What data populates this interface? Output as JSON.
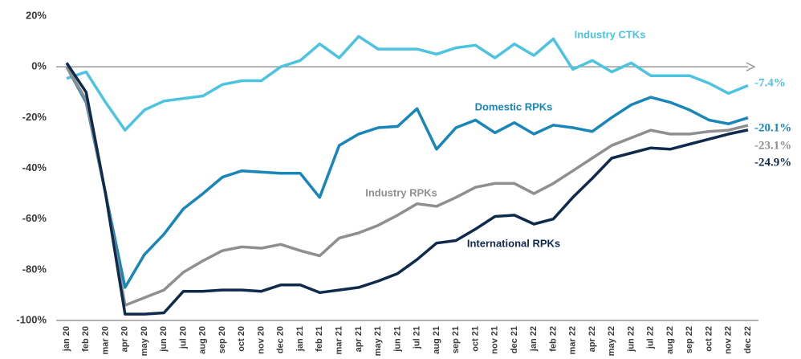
{
  "chart_data": {
    "type": "line",
    "categories": [
      "jan 20",
      "feb 20",
      "mar 20",
      "apr 20",
      "may 20",
      "jun 20",
      "jul 20",
      "aug 20",
      "sep 20",
      "oct 20",
      "nov 20",
      "dec 20",
      "jan 21",
      "feb 21",
      "mar 21",
      "apr 21",
      "may 21",
      "jun 21",
      "jul 21",
      "aug 21",
      "sep 21",
      "oct 21",
      "nov 21",
      "dec 21",
      "jan 22",
      "feb 22",
      "mar 22",
      "apr 22",
      "may 22",
      "jun 22",
      "jul 22",
      "aug 22",
      "sep 22",
      "oct 22",
      "nov 22",
      "dec 22"
    ],
    "ylim": [
      -100,
      20
    ],
    "yticks": [
      {
        "value": -100,
        "label": "-100%"
      },
      {
        "value": -80,
        "label": "-80%"
      },
      {
        "value": -60,
        "label": "-60%"
      },
      {
        "value": -40,
        "label": "-40%"
      },
      {
        "value": -20,
        "label": "-20%"
      },
      {
        "value": 0,
        "label": "0%"
      },
      {
        "value": 20,
        "label": "20%"
      }
    ],
    "series": [
      {
        "name": "Industry CTKs",
        "color": "#4cc3e0",
        "values": [
          -4.6,
          -2,
          -14,
          -25,
          -17,
          -13.5,
          -12.5,
          -11.5,
          -7,
          -5.5,
          -5.5,
          0,
          2.5,
          9,
          3.5,
          12,
          7,
          7,
          7,
          5,
          7.5,
          8.5,
          3.5,
          9,
          4.5,
          11,
          -1,
          2.5,
          -2,
          1.5,
          -3.5,
          -3.5,
          -3.5,
          -6.5,
          -10.5,
          -7.4
        ],
        "value_labels": [
          null,
          null,
          null,
          null,
          null,
          null,
          null,
          null,
          null,
          null,
          null,
          null,
          null,
          null,
          null,
          null,
          null,
          null,
          null,
          null,
          null,
          null,
          null,
          null,
          null,
          null,
          null,
          null,
          null,
          null,
          null,
          null,
          null,
          null,
          null,
          "-7.4%"
        ]
      },
      {
        "name": "Domestic RPKs",
        "color": "#1886b8",
        "values": [
          0,
          -14,
          -50,
          -87,
          -74,
          -66,
          -56,
          -50,
          -43.5,
          -41,
          -41.5,
          -42,
          -42,
          -51.5,
          -31,
          -26.5,
          -24,
          -23.5,
          -16.5,
          -32.5,
          -24,
          -21,
          -26,
          -22,
          -26.5,
          -23,
          -24,
          -25.5,
          -20,
          -15,
          -12,
          -14,
          -17,
          -21,
          -22.5,
          -20.1
        ],
        "value_labels": [
          null,
          null,
          null,
          null,
          null,
          null,
          null,
          null,
          null,
          null,
          null,
          null,
          null,
          null,
          null,
          null,
          null,
          null,
          null,
          null,
          null,
          null,
          null,
          null,
          null,
          null,
          null,
          null,
          null,
          null,
          null,
          null,
          null,
          null,
          null,
          "-20.1%"
        ]
      },
      {
        "name": "Industry RPKs",
        "color": "#8f8f8f",
        "values": [
          0,
          -13,
          -50,
          -94,
          -91,
          -88,
          -81,
          -76.5,
          -72.5,
          -71,
          -71.5,
          -70,
          -72.5,
          -74.5,
          -67.5,
          -65.5,
          -62.5,
          -58.5,
          -54,
          -55,
          -51.5,
          -47.5,
          -46,
          -46,
          -50,
          -46,
          -41,
          -36,
          -31,
          -28,
          -25,
          -26.5,
          -26.5,
          -25.5,
          -25,
          -23.1
        ],
        "value_labels": [
          null,
          null,
          null,
          null,
          null,
          null,
          null,
          null,
          null,
          null,
          null,
          null,
          null,
          null,
          null,
          null,
          null,
          null,
          null,
          null,
          null,
          null,
          null,
          null,
          null,
          null,
          null,
          null,
          null,
          null,
          null,
          null,
          null,
          null,
          null,
          "-23.1%"
        ]
      },
      {
        "name": "International RPKs",
        "color": "#0e2a4c",
        "values": [
          1.5,
          -10,
          -50,
          -97.5,
          -97.5,
          -97,
          -88.5,
          -88.5,
          -88,
          -88,
          -88.5,
          -86,
          -86,
          -89,
          -88,
          -87,
          -84.5,
          -81.5,
          -76,
          -69.5,
          -68.5,
          -64,
          -59,
          -58.5,
          -62,
          -60,
          -51.5,
          -44,
          -36,
          -34,
          -32,
          -32.5,
          -30.5,
          -28.5,
          -26.5,
          -24.9
        ],
        "value_labels": [
          null,
          null,
          null,
          null,
          null,
          null,
          null,
          null,
          null,
          null,
          null,
          null,
          null,
          null,
          null,
          null,
          null,
          null,
          null,
          null,
          null,
          null,
          null,
          null,
          null,
          null,
          null,
          null,
          null,
          null,
          null,
          null,
          null,
          null,
          null,
          "-24.9%"
        ]
      }
    ]
  }
}
